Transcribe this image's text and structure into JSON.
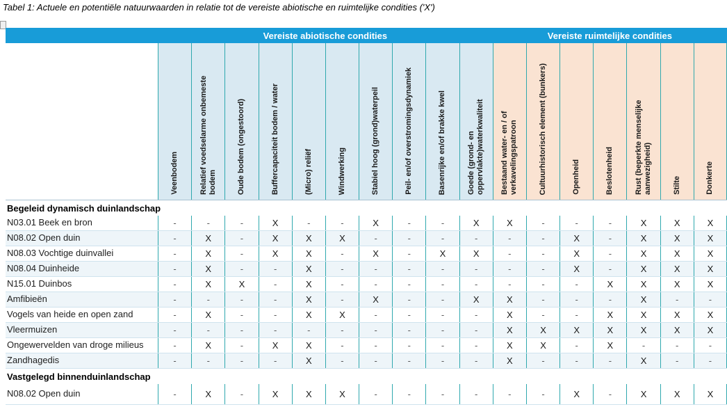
{
  "title": "Tabel 1: Actuele en potentiële natuurwaarden in relatie tot de vereiste abiotische en ruimtelijke condities ('X')",
  "colors": {
    "band_blue": "#189CD8",
    "abiotic_header_bg": "#D9E9F2",
    "spatial_header_bg": "#FAE3D2",
    "column_divider_teal": "#2EA8AE",
    "row_divider": "#CFE3EE",
    "row_stripe": "#EEF5F9",
    "band_text": "#FFFFFF"
  },
  "icons": {
    "selection_handle": "selection-handle-icon"
  },
  "groups": [
    {
      "label": "Vereiste abiotische condities",
      "span": 10,
      "type": "abiotic"
    },
    {
      "label": "Vereiste ruimtelijke condities",
      "span": 7,
      "type": "spatial"
    }
  ],
  "chart_data": {
    "type": "table",
    "title": "Tabel 1: Actuele en potentiële natuurwaarden in relatie tot de vereiste abiotische en ruimtelijke condities ('X')",
    "mark_true": "X",
    "mark_false": "-",
    "columns": [
      {
        "label": "Veenbodem",
        "group": "abiotic"
      },
      {
        "label": "Relatief voedselarme onbemeste bodem",
        "group": "abiotic"
      },
      {
        "label": "Oude bodem (ongestoord)",
        "group": "abiotic"
      },
      {
        "label": "Buffercapaciteit bodem / water",
        "group": "abiotic"
      },
      {
        "label": "(Micro) reliëf",
        "group": "abiotic"
      },
      {
        "label": "Windwerking",
        "group": "abiotic"
      },
      {
        "label": "Stabiel hoog (grond)waterpeil",
        "group": "abiotic"
      },
      {
        "label": "Peil- en/of overstromingsdynamiek",
        "group": "abiotic"
      },
      {
        "label": "Basenrijke en/of brakke kwel",
        "group": "abiotic"
      },
      {
        "label": "Goede (grond- en oppervlakte)waterkwaliteit",
        "group": "abiotic"
      },
      {
        "label": "Bestaand water- en / of verkavelingspatroon",
        "group": "spatial"
      },
      {
        "label": "Cultuurhistorisch element (bunkers)",
        "group": "spatial"
      },
      {
        "label": "Openheid",
        "group": "spatial"
      },
      {
        "label": "Beslotenheid",
        "group": "spatial"
      },
      {
        "label": "Rust (beperkte menselijke aanwezigheid)",
        "group": "spatial"
      },
      {
        "label": "Stilte",
        "group": "spatial"
      },
      {
        "label": "Donkerte",
        "group": "spatial"
      }
    ],
    "sections": [
      {
        "header": "Begeleid dynamisch duinlandschap",
        "rows": [
          {
            "label": "N03.01 Beek en bron",
            "values": [
              "-",
              "-",
              "-",
              "X",
              "-",
              "-",
              "X",
              "-",
              "-",
              "X",
              "X",
              "-",
              "-",
              "-",
              "X",
              "X",
              "X"
            ]
          },
          {
            "label": "N08.02 Open duin",
            "values": [
              "-",
              "X",
              "-",
              "X",
              "X",
              "X",
              "-",
              "-",
              "-",
              "-",
              "-",
              "-",
              "X",
              "-",
              "X",
              "X",
              "X"
            ]
          },
          {
            "label": "N08.03 Vochtige duinvallei",
            "values": [
              "-",
              "X",
              "-",
              "X",
              "X",
              "-",
              "X",
              "-",
              "X",
              "X",
              "-",
              "-",
              "X",
              "-",
              "X",
              "X",
              "X"
            ]
          },
          {
            "label": "N08.04 Duinheide",
            "values": [
              "-",
              "X",
              "-",
              "-",
              "X",
              "-",
              "-",
              "-",
              "-",
              "-",
              "-",
              "-",
              "X",
              "-",
              "X",
              "X",
              "X"
            ]
          },
          {
            "label": "N15.01 Duinbos",
            "values": [
              "-",
              "X",
              "X",
              "-",
              "X",
              "-",
              "-",
              "-",
              "-",
              "-",
              "-",
              "-",
              "-",
              "X",
              "X",
              "X",
              "X"
            ]
          },
          {
            "label": "Amfibieën",
            "values": [
              "-",
              "-",
              "-",
              "-",
              "X",
              "-",
              "X",
              "-",
              "-",
              "X",
              "X",
              "-",
              "-",
              "-",
              "X",
              "-",
              "-"
            ]
          },
          {
            "label": "Vogels van heide en open zand",
            "values": [
              "-",
              "X",
              "-",
              "-",
              "X",
              "X",
              "-",
              "-",
              "-",
              "-",
              "X",
              "-",
              "-",
              "X",
              "X",
              "X",
              "X"
            ]
          },
          {
            "label": "Vleermuizen",
            "values": [
              "-",
              "-",
              "-",
              "-",
              "-",
              "-",
              "-",
              "-",
              "-",
              "-",
              "X",
              "X",
              "X",
              "X",
              "X",
              "X",
              "X"
            ]
          },
          {
            "label": "Ongewervelden van droge milieus",
            "values": [
              "-",
              "X",
              "-",
              "X",
              "X",
              "-",
              "-",
              "-",
              "-",
              "-",
              "X",
              "X",
              "-",
              "X",
              "-",
              "-",
              "-"
            ]
          },
          {
            "label": "Zandhagedis",
            "values": [
              "-",
              "-",
              "-",
              "-",
              "X",
              "-",
              "-",
              "-",
              "-",
              "-",
              "X",
              "-",
              "-",
              "-",
              "X",
              "-",
              "-"
            ]
          }
        ]
      },
      {
        "header": "Vastgelegd binnenduinlandschap",
        "rows": [
          {
            "label": "N08.02 Open duin",
            "values": [
              "-",
              "X",
              "-",
              "X",
              "X",
              "X",
              "-",
              "-",
              "-",
              "-",
              "-",
              "-",
              "X",
              "-",
              "X",
              "X",
              "X"
            ]
          }
        ]
      }
    ]
  }
}
